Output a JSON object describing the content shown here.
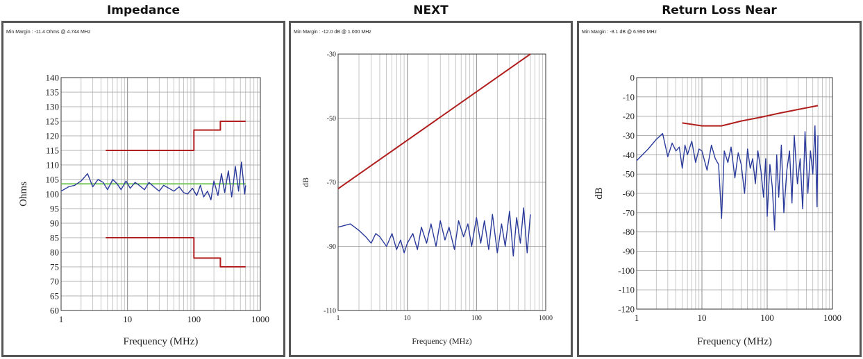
{
  "chart_data": [
    {
      "type": "line",
      "title": "Impedance",
      "note": "Min Margin : -11.4 Ohms @ 4.744 MHz",
      "xlabel": "Frequency (MHz)",
      "ylabel": "Ohms",
      "xscale": "log",
      "xlim": [
        1,
        1000
      ],
      "ylim": [
        60,
        140
      ],
      "xticks": [
        1,
        10,
        100,
        1000
      ],
      "yticks": [
        60,
        65,
        70,
        75,
        80,
        85,
        90,
        95,
        100,
        105,
        110,
        115,
        120,
        125,
        130,
        135,
        140
      ],
      "grid": true,
      "colors": {
        "limit": "#b11e1e",
        "measured": "#2a3a9b",
        "nominal": "#55bb33"
      },
      "series": [
        {
          "role": "limit",
          "x": [
            4.7,
            100,
            100,
            250,
            250,
            600
          ],
          "y": [
            115,
            115,
            122,
            122,
            125,
            125
          ]
        },
        {
          "role": "limit",
          "x": [
            4.7,
            100,
            100,
            250,
            250,
            600
          ],
          "y": [
            85,
            85,
            78,
            78,
            75,
            75
          ]
        },
        {
          "role": "nominal",
          "x": [
            1,
            600
          ],
          "y": [
            103.5,
            103.5
          ]
        },
        {
          "role": "measured",
          "x": [
            1,
            1.3,
            1.6,
            2,
            2.5,
            3,
            3.6,
            4.3,
            5,
            6,
            7,
            8,
            9.5,
            11,
            13,
            15,
            18,
            21,
            25,
            30,
            35,
            42,
            50,
            60,
            70,
            80,
            95,
            110,
            125,
            140,
            160,
            180,
            200,
            230,
            260,
            290,
            330,
            370,
            420,
            470,
            520,
            580,
            600
          ],
          "y": [
            101,
            102.5,
            103,
            104.5,
            107,
            102.5,
            105,
            104,
            101.5,
            105,
            103.5,
            101.5,
            104.5,
            102,
            104,
            103,
            101.5,
            104,
            102.5,
            101,
            103,
            102,
            101,
            102.5,
            100.5,
            100,
            102,
            99.5,
            103,
            99,
            101,
            98,
            104.5,
            99.5,
            107,
            100.5,
            108,
            99,
            109.5,
            101,
            111,
            100,
            103
          ]
        }
      ]
    },
    {
      "type": "line",
      "title": "NEXT",
      "note": "Min Margin : -12.0 dB @ 1.000 MHz",
      "xlabel": "Frequency (MHz)",
      "ylabel": "dB",
      "xscale": "log",
      "xlim": [
        1,
        1000
      ],
      "ylim": [
        -110,
        -30
      ],
      "xticks": [
        1,
        10,
        100,
        1000
      ],
      "yticks": [
        -110,
        -90,
        -70,
        -50,
        -30
      ],
      "grid": true,
      "colors": {
        "limit": "#b11e1e",
        "measured": "#2a3a9b"
      },
      "series": [
        {
          "role": "limit",
          "x": [
            1,
            600
          ],
          "y": [
            -72,
            -30
          ]
        },
        {
          "role": "measured",
          "x": [
            1,
            1.5,
            2,
            2.5,
            3,
            3.5,
            4,
            5,
            6,
            7,
            8,
            9,
            10,
            12,
            14,
            16,
            19,
            22,
            26,
            30,
            35,
            40,
            48,
            55,
            65,
            75,
            85,
            100,
            115,
            130,
            150,
            170,
            200,
            230,
            260,
            300,
            340,
            380,
            430,
            480,
            540,
            600
          ],
          "y": [
            -84,
            -83,
            -85,
            -87,
            -89,
            -86,
            -87,
            -90,
            -86,
            -91,
            -88,
            -92,
            -89,
            -86,
            -91,
            -84,
            -89,
            -83,
            -90,
            -82,
            -88,
            -84,
            -91,
            -82,
            -87,
            -83,
            -90,
            -81,
            -89,
            -82,
            -91,
            -80,
            -92,
            -83,
            -90,
            -79,
            -93,
            -81,
            -89,
            -78,
            -92,
            -80
          ]
        }
      ]
    },
    {
      "type": "line",
      "title": "Return Loss Near",
      "note": "Min Margin : -8.1 dB @ 6.990 MHz",
      "xlabel": "Frequency (MHz)",
      "ylabel": "dB",
      "xscale": "log",
      "xlim": [
        1,
        1000
      ],
      "ylim": [
        -120,
        0
      ],
      "xticks": [
        1,
        10,
        100,
        1000
      ],
      "yticks": [
        -120,
        -110,
        -100,
        -90,
        -80,
        -70,
        -60,
        -50,
        -40,
        -30,
        -20,
        -10,
        0
      ],
      "grid": true,
      "colors": {
        "limit": "#b11e1e",
        "measured": "#2a3a9b"
      },
      "series": [
        {
          "role": "limit",
          "x": [
            5,
            10,
            20,
            40,
            80,
            150,
            300,
            600
          ],
          "y": [
            -23.5,
            -25,
            -25,
            -22.5,
            -20.5,
            -18.5,
            -16.5,
            -14.5
          ]
        },
        {
          "role": "measured",
          "x": [
            1,
            1.5,
            2,
            2.5,
            3,
            3.5,
            4,
            4.5,
            5,
            5.5,
            6,
            7,
            8,
            9,
            10,
            12,
            14,
            16,
            18,
            20,
            22,
            25,
            28,
            32,
            36,
            40,
            45,
            50,
            55,
            60,
            66,
            72,
            80,
            88,
            95,
            100,
            110,
            120,
            130,
            140,
            150,
            165,
            180,
            200,
            220,
            240,
            260,
            290,
            320,
            350,
            380,
            420,
            460,
            500,
            540,
            580,
            600
          ],
          "y": [
            -43,
            -37,
            -32,
            -29,
            -41,
            -34,
            -38,
            -36,
            -47,
            -35,
            -40,
            -33,
            -44,
            -37,
            -38,
            -48,
            -35,
            -42,
            -45,
            -73,
            -38,
            -44,
            -36,
            -52,
            -39,
            -45,
            -60,
            -37,
            -47,
            -42,
            -55,
            -38,
            -48,
            -62,
            -42,
            -72,
            -45,
            -57,
            -79,
            -40,
            -62,
            -35,
            -70,
            -48,
            -38,
            -65,
            -30,
            -55,
            -42,
            -68,
            -28,
            -60,
            -38,
            -50,
            -25,
            -67,
            -30
          ]
        }
      ]
    }
  ]
}
